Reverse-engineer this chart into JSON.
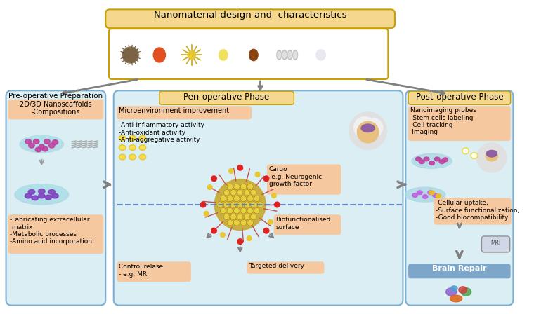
{
  "title_top": "Nanomaterial design and  characteristics",
  "top_box_color": "#F5D78E",
  "pre_op_title": "Pre-operative Preparation",
  "pre_op_bg": "#DAEEF3",
  "pre_op_box1_color": "#F5C8A0",
  "pre_op_box1_text": "2D/3D Nanoscaffolds\n-Compositions",
  "pre_op_box2_text": "-Fabricating extracellular\n matrix\n-Metabolic processes\n-Amino acid incorporation",
  "peri_op_title": "Peri-operative Phase",
  "peri_op_bg": "#DAEEF3",
  "peri_op_box1_color": "#F5C8A0",
  "peri_op_box1_text": "Microenvironment improvement",
  "peri_micro_text": "-Anti-inflammatory activity\n-Anti-oxidant activity\n-Anti-aggregative activity",
  "peri_cargo_text": "Cargo\n-e.g. Neurogenic\ngrowth factor",
  "peri_bio_text": "Biofunctionalised\nsurface",
  "peri_control_text": "Control relase\n- e.g. MRI",
  "peri_targeted_text": "Targeted delivery",
  "post_op_title": "Post-operative Phase",
  "post_op_bg": "#DAEEF3",
  "post_op_box1_color": "#F5C8A0",
  "post_op_box1_text": "Nanoimaging probes\n-Stem cells labeling\n-Cell tracking\n-Imaging",
  "post_op_box2_text": "-Cellular uptake,\n-Surface functionalization,\n-Good biocompatibility",
  "brain_repair_text": "Brain Repair",
  "brain_repair_color": "#7EA6C8",
  "box_border_color": "#7BAFD4",
  "salmon_box_color": "#F5C8A0",
  "arrow_color": "#808080",
  "dashed_line_color": "#4472C4"
}
